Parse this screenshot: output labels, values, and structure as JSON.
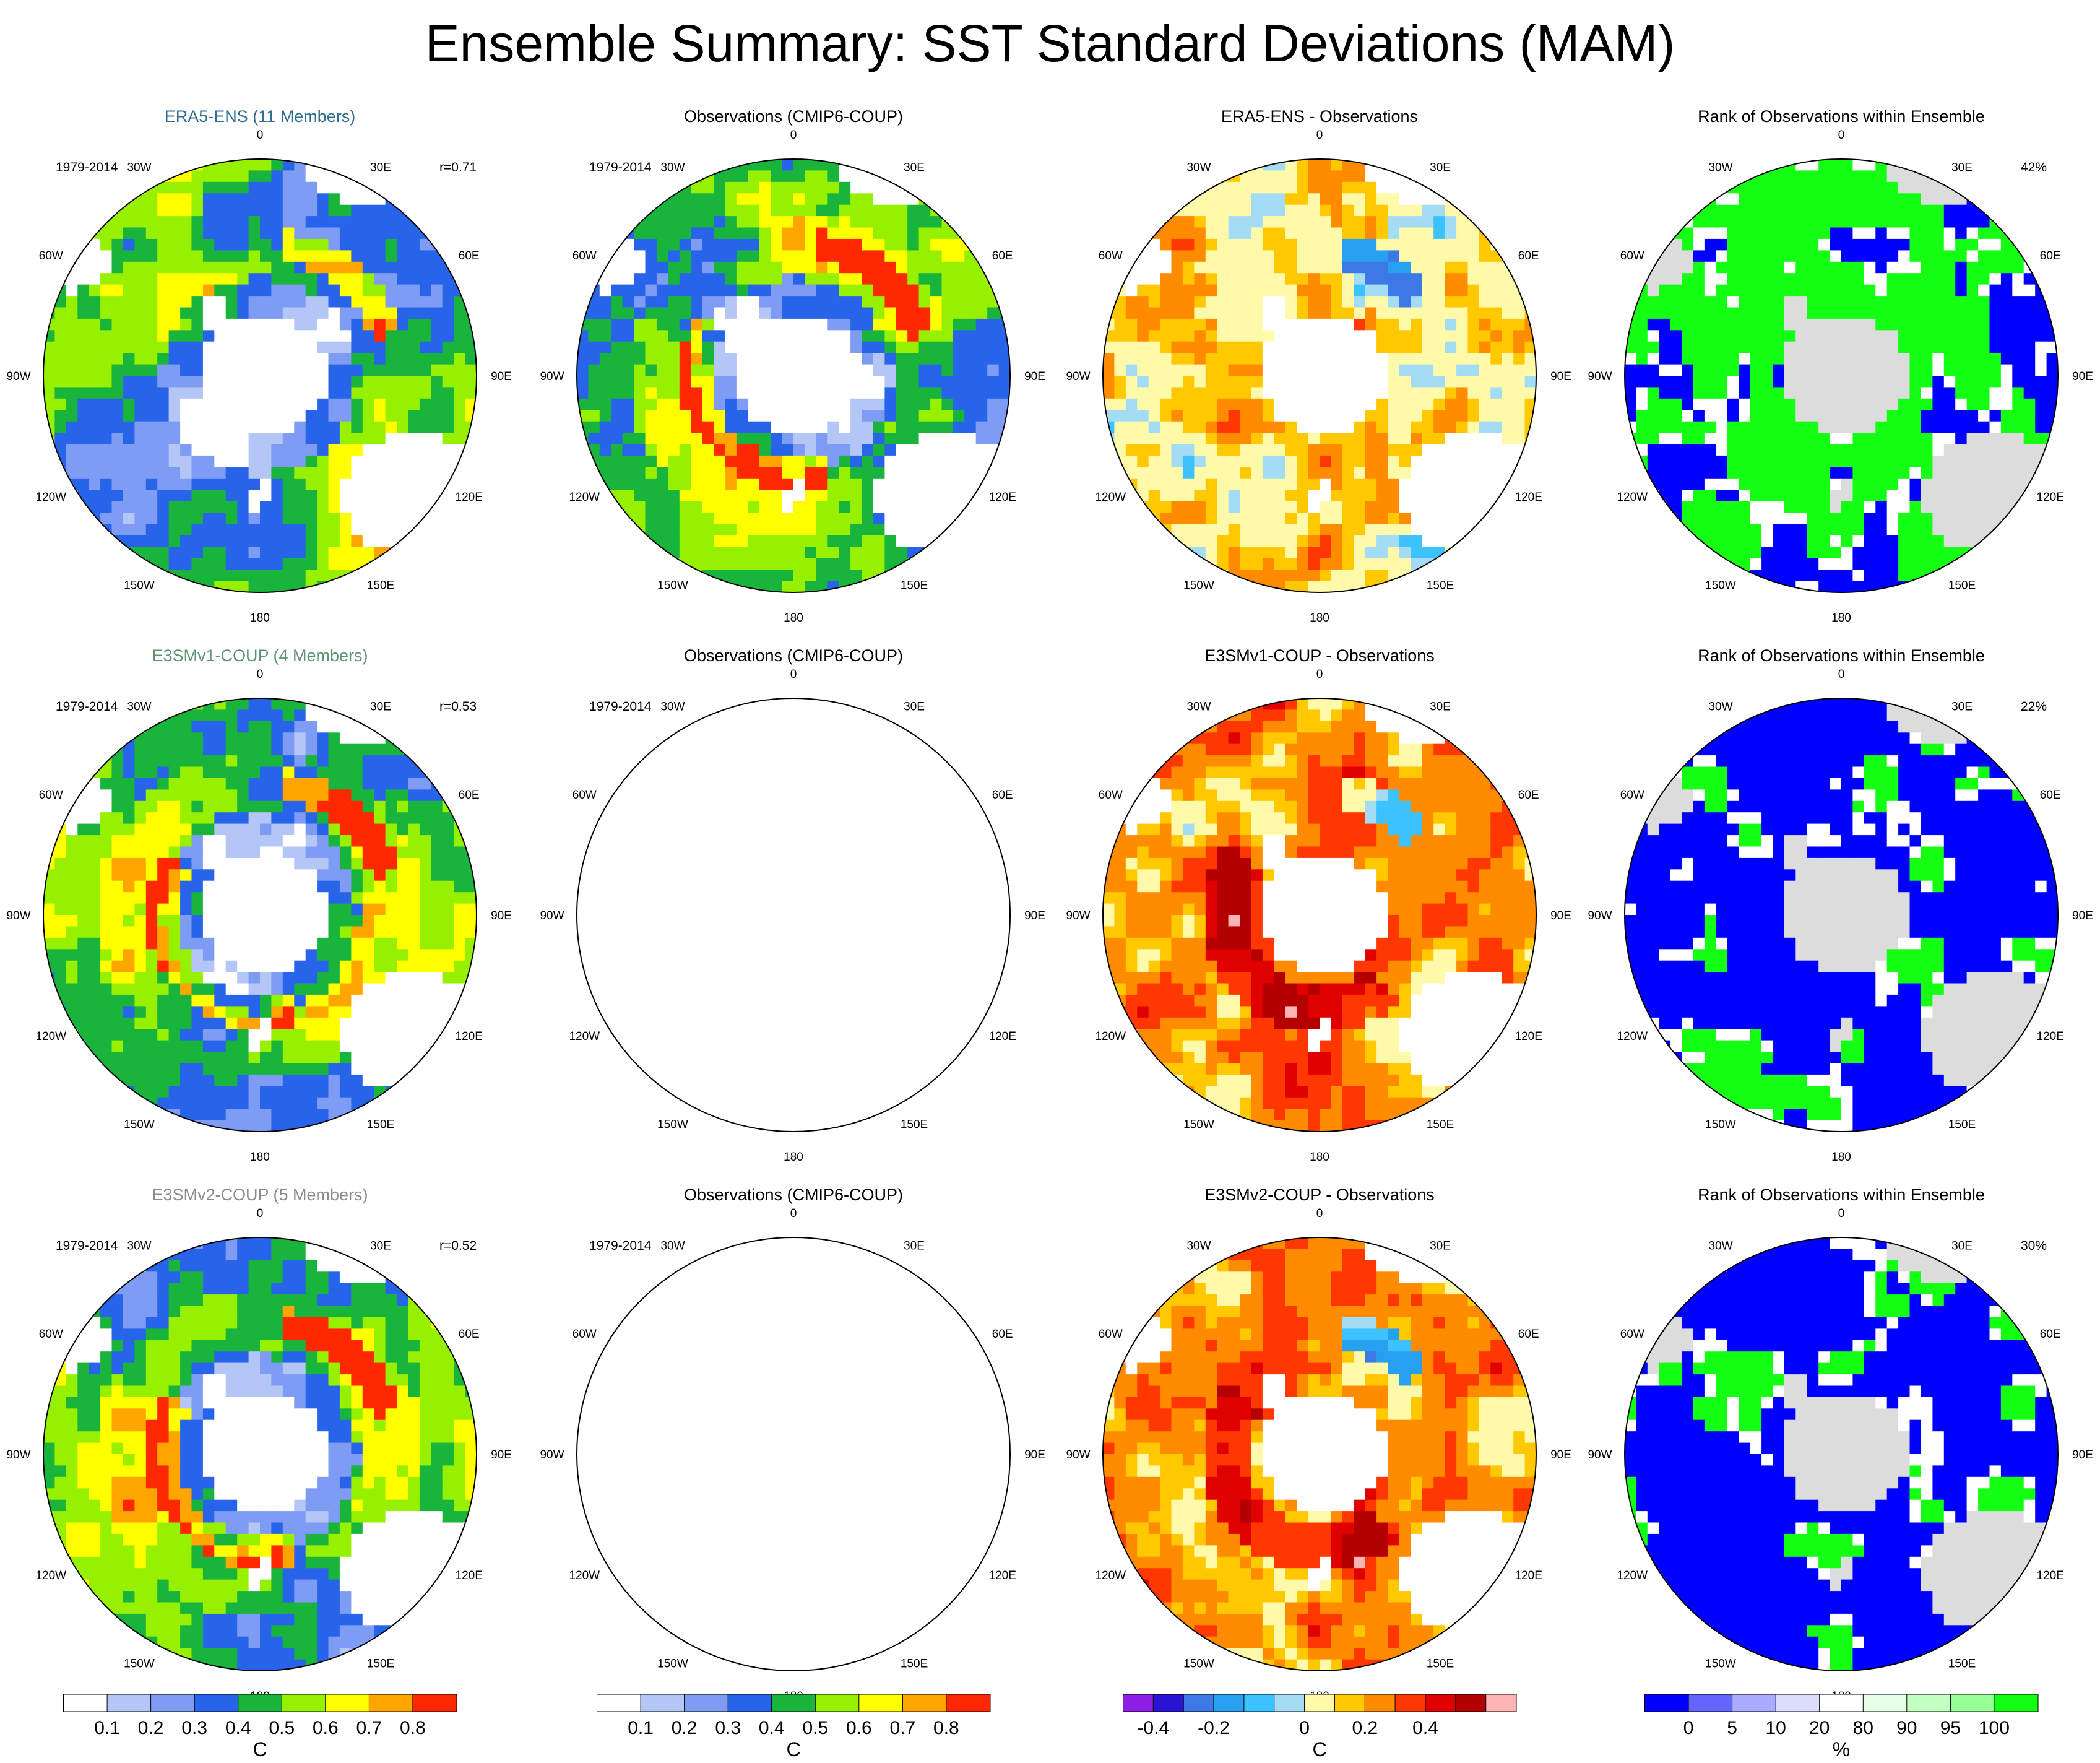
{
  "title": "Ensemble Summary: SST Standard Deviations (MAM)",
  "longitude_labels": [
    "0",
    "30E",
    "60E",
    "90E",
    "120E",
    "150E",
    "180",
    "150W",
    "120W",
    "90W",
    "60W",
    "30W"
  ],
  "rows": [
    {
      "label": "ERA5-ENS (11 Members)",
      "label_color": "#2e6e92",
      "diff_title": "ERA5-ENS - Observations",
      "corr": "r=0.71",
      "rank_pct": "42%",
      "period": "1979-2014",
      "obs_title": "Observations (CMIP6-COUP)",
      "rank_title": "Rank of Observations within Ensemble"
    },
    {
      "label": "E3SMv1-COUP (4 Members)",
      "label_color": "#5e9472",
      "diff_title": "E3SMv1-COUP - Observations",
      "corr": "r=0.53",
      "rank_pct": "22%",
      "period": "1979-2014",
      "obs_title": "Observations (CMIP6-COUP)",
      "rank_title": "Rank of Observations within Ensemble"
    },
    {
      "label": "E3SMv2-COUP (5 Members)",
      "label_color": "#8c8c8c",
      "diff_title": "E3SMv2-COUP - Observations",
      "corr": "r=0.52",
      "rank_pct": "30%",
      "period": "1979-2014",
      "obs_title": "Observations (CMIP6-COUP)",
      "rank_title": "Rank of Observations within Ensemble"
    }
  ],
  "colorbars": [
    {
      "unit": "C",
      "colors": [
        "#ffffff",
        "#b3c6f5",
        "#7f9cf5",
        "#2864ea",
        "#19b43c",
        "#96f000",
        "#ffff00",
        "#ffa500",
        "#ff2800"
      ],
      "ticks": [
        "0.1",
        "0.2",
        "0.3",
        "0.4",
        "0.5",
        "0.6",
        "0.7",
        "0.8"
      ]
    },
    {
      "unit": "C",
      "colors": [
        "#ffffff",
        "#b3c6f5",
        "#7f9cf5",
        "#2864ea",
        "#19b43c",
        "#96f000",
        "#ffff00",
        "#ffa500",
        "#ff2800"
      ],
      "ticks": [
        "0.1",
        "0.2",
        "0.3",
        "0.4",
        "0.5",
        "0.6",
        "0.7",
        "0.8"
      ]
    },
    {
      "unit": "C",
      "colors": [
        "#8c1ee6",
        "#2814d2",
        "#3c78e6",
        "#28a0f0",
        "#3cc3ff",
        "#a5dcf5",
        "#fffaaa",
        "#ffc800",
        "#ff8c00",
        "#ff3700",
        "#e10000",
        "#b40000",
        "#ffb4b4"
      ],
      "ticks": [
        "-0.4",
        "-0.2",
        "0",
        "0.2",
        "0.4"
      ],
      "tick_boundaries": [
        1,
        3,
        6,
        8,
        10
      ]
    },
    {
      "unit": "%",
      "colors": [
        "#0000ff",
        "#6464ff",
        "#aaaaff",
        "#dcdcff",
        "#ffffff",
        "#e6ffe6",
        "#c3ffc3",
        "#96ff96",
        "#14ff14"
      ],
      "ticks": [
        "0",
        "5",
        "10",
        "20",
        "80",
        "90",
        "95",
        "100"
      ]
    }
  ],
  "chart_data": {
    "type": "heatmap",
    "title": "Ensemble Summary: SST Standard Deviations (MAM)",
    "projection": "south polar stereographic",
    "panels": [
      {
        "title": "ERA5-ENS (11 Members)",
        "period": "1979-2014",
        "pattern_correlation": 0.71
      },
      {
        "title": "Observations (CMIP6-COUP)",
        "period": "1979-2014"
      },
      {
        "title": "ERA5-ENS - Observations"
      },
      {
        "title": "Rank of Observations within Ensemble",
        "pct_outside_5_95": 42
      },
      {
        "title": "E3SMv1-COUP (4 Members)",
        "period": "1979-2014",
        "pattern_correlation": 0.53
      },
      {
        "title": "Observations (CMIP6-COUP)",
        "period": "1979-2014"
      },
      {
        "title": "E3SMv1-COUP - Observations"
      },
      {
        "title": "Rank of Observations within Ensemble",
        "pct_outside_5_95": 22
      },
      {
        "title": "E3SMv2-COUP (5 Members)",
        "period": "1979-2014",
        "pattern_correlation": 0.52
      },
      {
        "title": "Observations (CMIP6-COUP)",
        "period": "1979-2014"
      },
      {
        "title": "E3SMv2-COUP - Observations"
      },
      {
        "title": "Rank of Observations within Ensemble",
        "pct_outside_5_95": 30
      }
    ],
    "sst_std_levels": [
      0.1,
      0.2,
      0.3,
      0.4,
      0.5,
      0.6,
      0.7,
      0.8
    ],
    "difference_levels": [
      -0.5,
      -0.4,
      -0.3,
      -0.2,
      -0.1,
      -0.05,
      0.05,
      0.1,
      0.2,
      0.3,
      0.4,
      0.5
    ],
    "rank_levels": [
      0,
      5,
      10,
      20,
      80,
      90,
      95,
      100
    ]
  }
}
